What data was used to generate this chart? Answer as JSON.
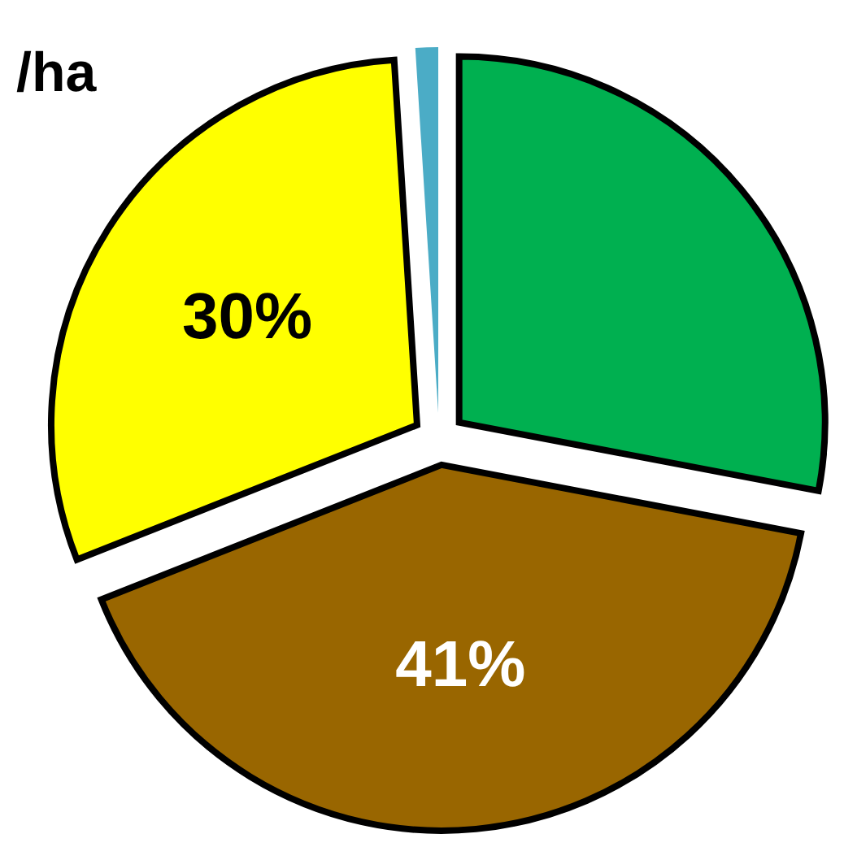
{
  "chart_data": {
    "type": "pie",
    "title": "/ha",
    "categories": [
      null,
      null,
      null,
      null
    ],
    "values": [
      28,
      41,
      30,
      1
    ],
    "colors": [
      "#00b050",
      "#996600",
      "#ffff00",
      "#4bacc6"
    ],
    "value_labels": [
      null,
      "41%",
      "30%",
      null
    ]
  }
}
